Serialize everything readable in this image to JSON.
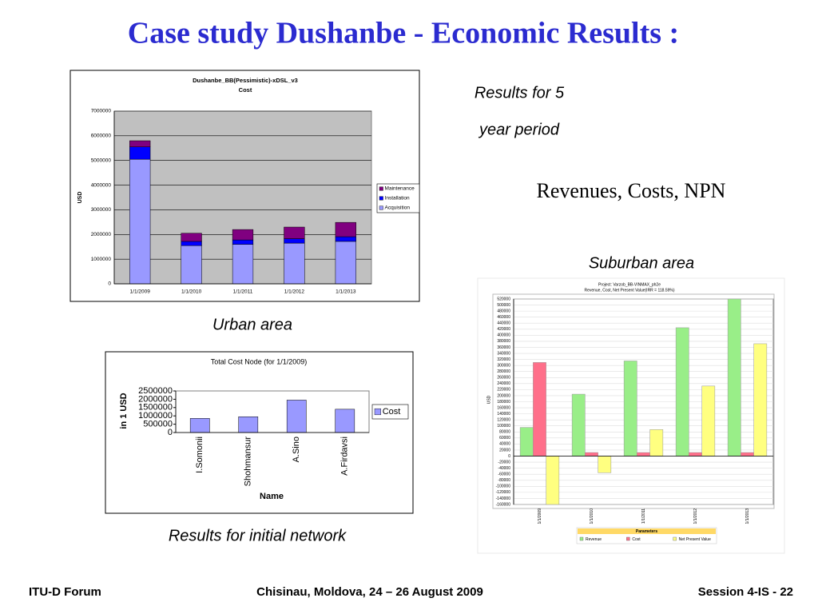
{
  "slide": {
    "title": "Case study Dushanbe - Economic Results :",
    "caption_period_1": "Results for 5",
    "caption_period_2": "year period",
    "caption_rcn": "Revenues, Costs, NPN",
    "caption_suburban": "Suburban area",
    "caption_urban": "Urban area",
    "caption_initial": "Results for initial network",
    "footer_left": "ITU-D Forum",
    "footer_center": "Chisinau, Moldova, 24 – 26  August  2009",
    "footer_right": "Session 4-IS  - 22"
  },
  "chart_data": [
    {
      "type": "bar",
      "stacked": true,
      "title": "Dushanbe_BB(Pessimistic)-xDSL_v3",
      "subtitle": "Cost",
      "y_label": "USD",
      "categories": [
        "1/1/2009",
        "1/1/2010",
        "1/1/2011",
        "1/1/2012",
        "1/1/2013"
      ],
      "series": [
        {
          "name": "Acquisition",
          "color": "#9999ff",
          "values": [
            5050000,
            1550000,
            1600000,
            1650000,
            1720000
          ]
        },
        {
          "name": "Installation",
          "color": "#0000ff",
          "values": [
            500000,
            170000,
            180000,
            180000,
            190000
          ]
        },
        {
          "name": "Maintenance",
          "color": "#800080",
          "values": [
            250000,
            330000,
            420000,
            470000,
            580000
          ]
        }
      ],
      "ylim": [
        0,
        7000000
      ],
      "yticks": [
        0,
        1000000,
        2000000,
        3000000,
        4000000,
        5000000,
        6000000,
        7000000
      ],
      "grid": true,
      "legend": "right"
    },
    {
      "type": "bar",
      "title": "Total Cost Node (for 1/1/2009)",
      "y_label": "in 1 USD",
      "x_label": "Name",
      "categories": [
        "I.Somonii",
        "Shohmansur",
        "A.Sino",
        "A.Firdavsi"
      ],
      "series": [
        {
          "name": "Cost",
          "color": "#9999ff",
          "values": [
            850000,
            950000,
            1950000,
            1400000
          ]
        }
      ],
      "ylim": [
        0,
        2500000
      ],
      "yticks": [
        0,
        500000,
        1000000,
        1500000,
        2000000,
        2500000
      ],
      "grid": false,
      "legend": "right"
    },
    {
      "type": "bar",
      "title": "Project: Varzob_BB-VINMAX_ph2e",
      "subtitle": "Revenue, Cost, Net Present Value(IRR = 118.59%)",
      "y_label": "USD",
      "categories": [
        "1/1/2009",
        "1/1/2010",
        "1/1/2011",
        "1/1/2012",
        "1/1/2013"
      ],
      "series": [
        {
          "name": "Revenue",
          "color": "#99ee88",
          "values": [
            95000,
            205000,
            315000,
            425000,
            520000
          ]
        },
        {
          "name": "Cost",
          "color": "#ff6f8a",
          "values": [
            310000,
            12000,
            12000,
            12000,
            12000
          ]
        },
        {
          "name": "Net Present Value",
          "color": "#ffff80",
          "values": [
            -160000,
            -55000,
            88000,
            232000,
            372000
          ]
        }
      ],
      "ylim": [
        -160000,
        520000
      ],
      "yticks": [
        -160000,
        -140000,
        -120000,
        -100000,
        -80000,
        -60000,
        -40000,
        -20000,
        0,
        20000,
        40000,
        60000,
        80000,
        100000,
        120000,
        140000,
        160000,
        180000,
        200000,
        220000,
        240000,
        260000,
        280000,
        300000,
        320000,
        340000,
        360000,
        380000,
        400000,
        420000,
        440000,
        460000,
        480000,
        500000,
        520000
      ],
      "grid": true,
      "legend": "bottom",
      "legend_title": "Parameters"
    }
  ]
}
